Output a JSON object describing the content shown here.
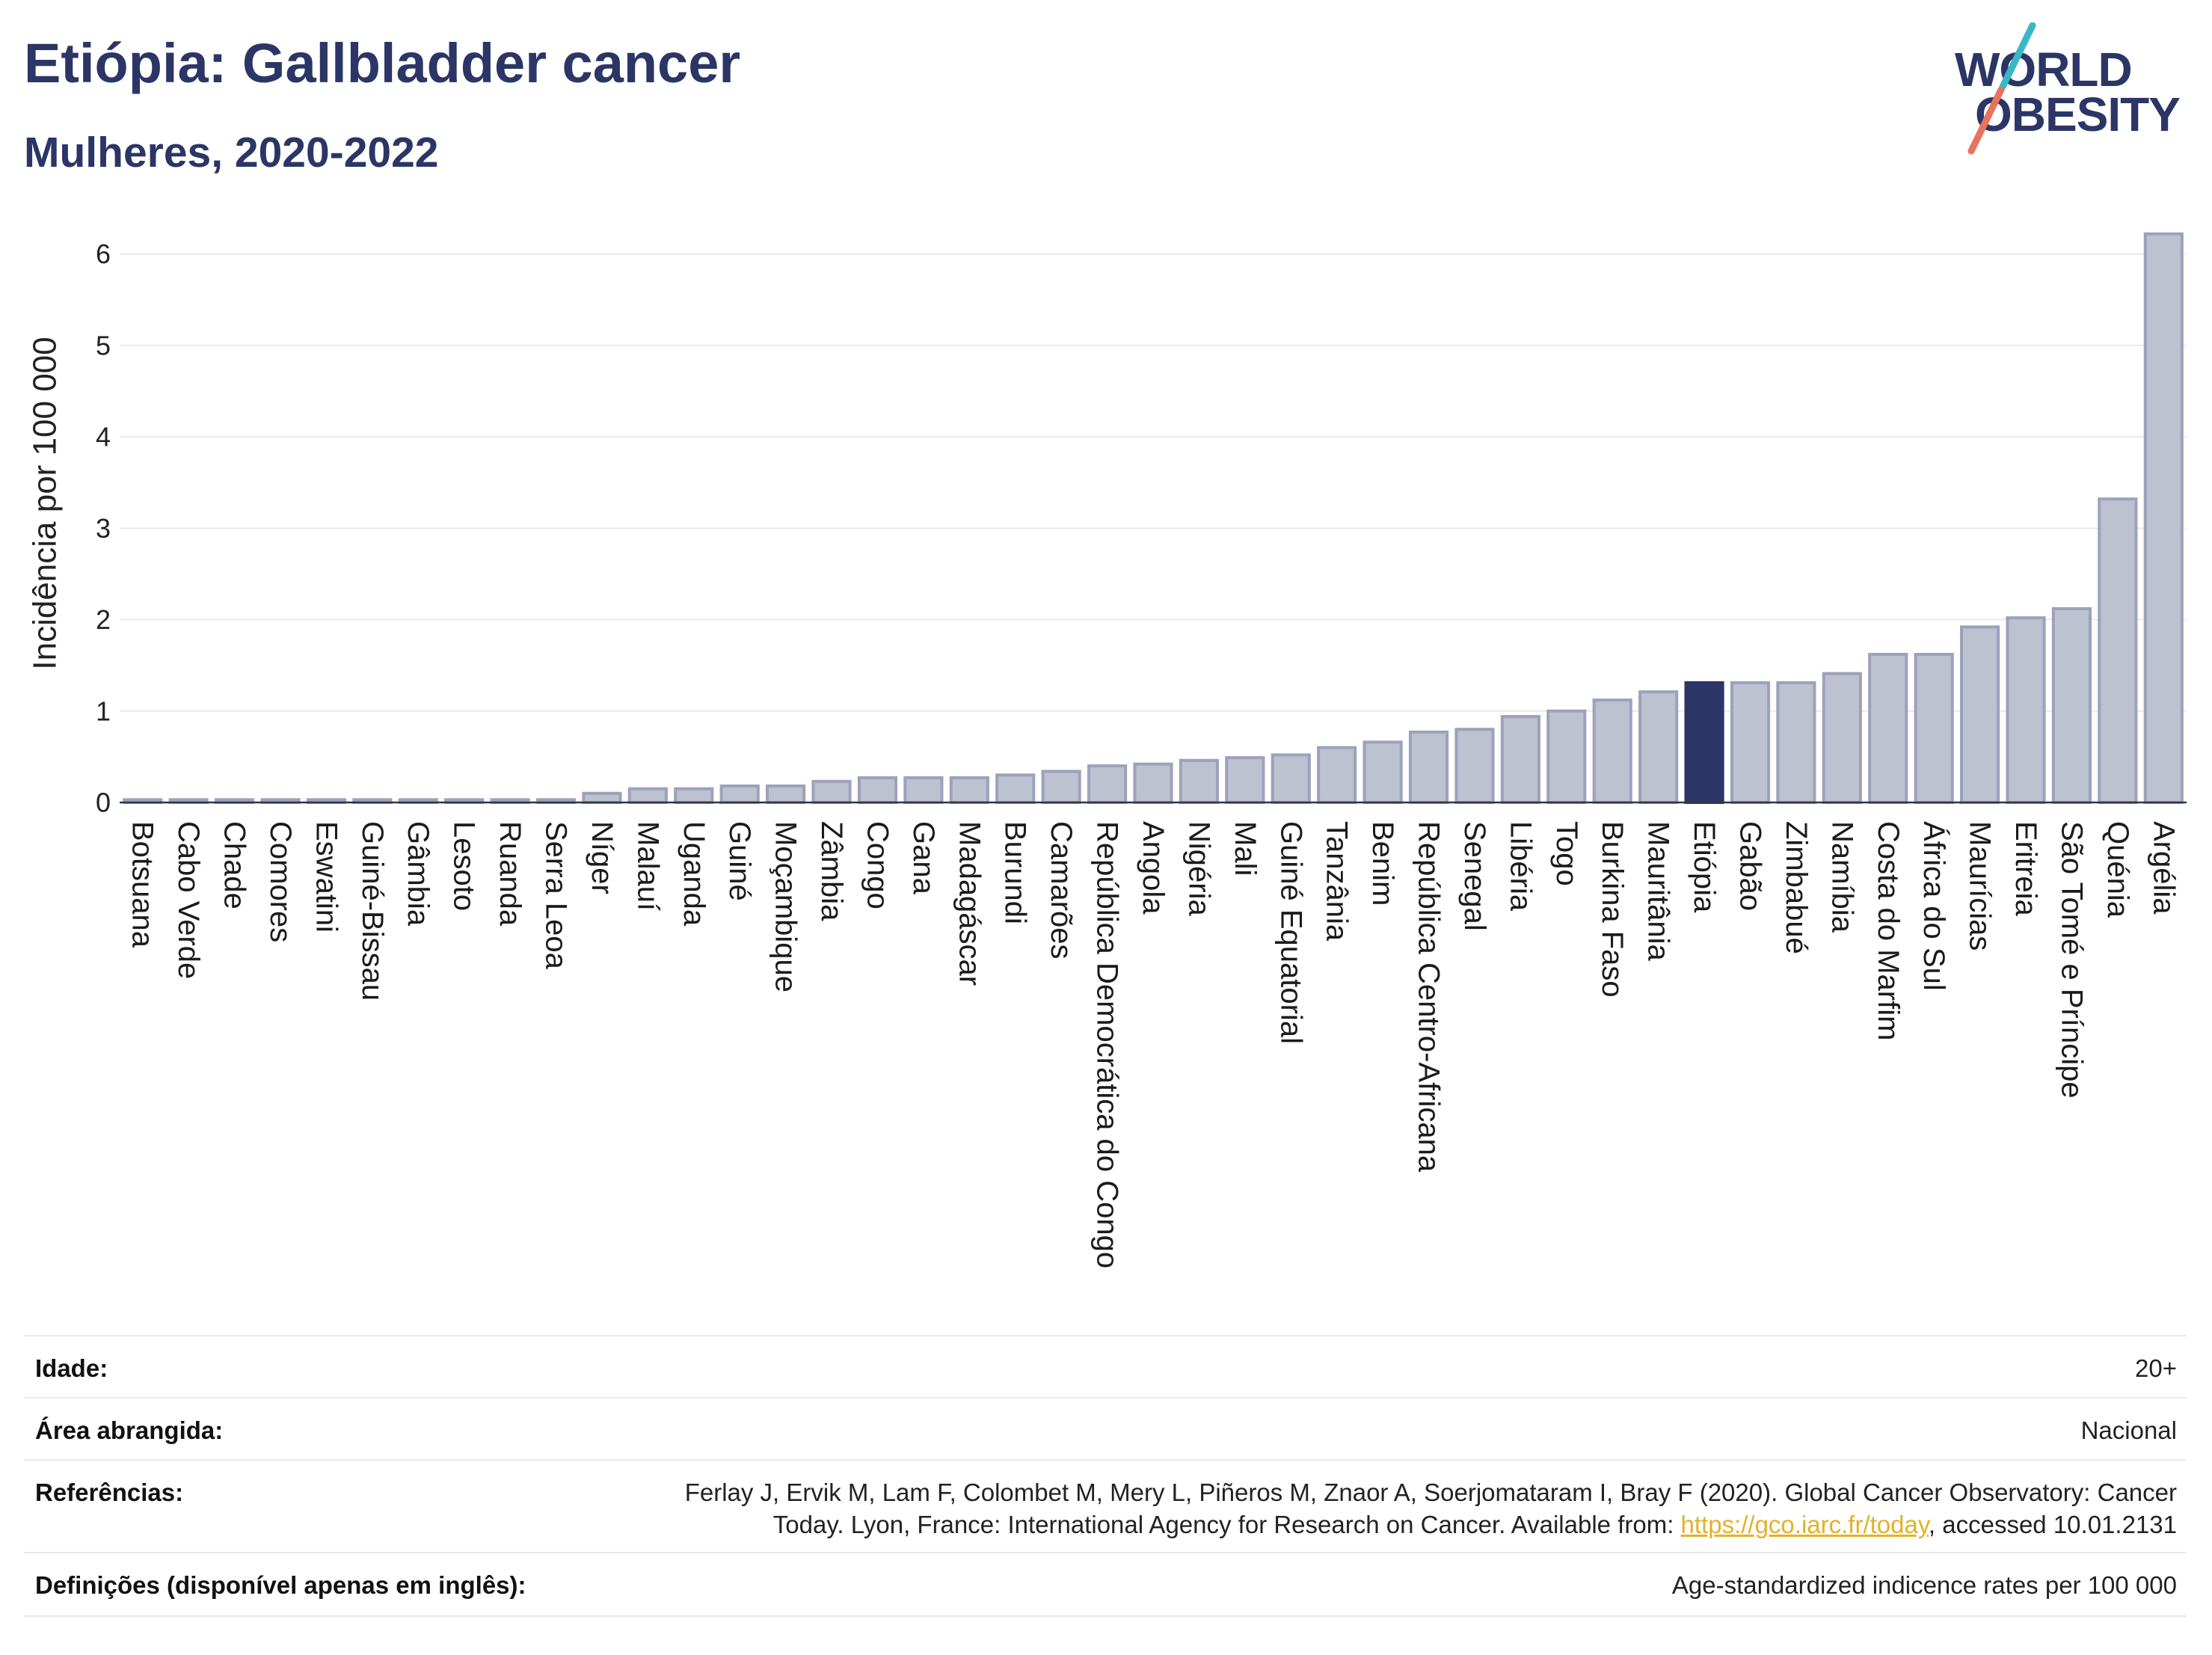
{
  "theme": {
    "primary": "#2b3566",
    "link": "#e2b227",
    "rule": "#e6e9ee"
  },
  "logo": {
    "line1": "WORLD",
    "line2": "OBESITY",
    "colors": {
      "slash_top": "#3bb6c4",
      "slash_bottom": "#e8735e"
    }
  },
  "chart_data": {
    "type": "bar",
    "title": "Etiópia: Gallbladder cancer",
    "subtitle": "Mulheres, 2020-2022",
    "xlabel": "",
    "ylabel": "Incidência por 100 000",
    "ylim": [
      0,
      6.3
    ],
    "yticks": [
      0,
      1,
      2,
      3,
      4,
      5,
      6
    ],
    "grid": true,
    "highlighted_index": 34,
    "categories": [
      "Botsuana",
      "Cabo Verde",
      "Chade",
      "Comores",
      "Eswatini",
      "Guiné-Bissau",
      "Gâmbia",
      "Lesoto",
      "Ruanda",
      "Serra Leoa",
      "Níger",
      "Malauí",
      "Uganda",
      "Guiné",
      "Moçambique",
      "Zâmbia",
      "Congo",
      "Gana",
      "Madagáscar",
      "Burundi",
      "Camarões",
      "República Democrática do Congo",
      "Angola",
      "Nigéria",
      "Mali",
      "Guiné Equatorial",
      "Tanzânia",
      "Benim",
      "República Centro-Africana",
      "Senegal",
      "Libéria",
      "Togo",
      "Burkina Faso",
      "Mauritânia",
      "Etiópia",
      "Gabão",
      "Zimbabué",
      "Namíbia",
      "Costa do Marfim",
      "África do Sul",
      "Maurícias",
      "Eritreia",
      "São Tomé e Príncipe",
      "Quénia",
      "Argélia"
    ],
    "values": [
      0.03,
      0.03,
      0.03,
      0.03,
      0.03,
      0.03,
      0.03,
      0.03,
      0.03,
      0.03,
      0.1,
      0.15,
      0.15,
      0.18,
      0.18,
      0.23,
      0.27,
      0.27,
      0.27,
      0.3,
      0.34,
      0.4,
      0.42,
      0.46,
      0.49,
      0.52,
      0.6,
      0.66,
      0.77,
      0.8,
      0.94,
      1.0,
      1.12,
      1.21,
      1.31,
      1.31,
      1.31,
      1.41,
      1.62,
      1.62,
      1.92,
      2.02,
      2.12,
      3.32,
      6.22
    ],
    "colors": {
      "bar": "#bdc1d0",
      "bar_stroke": "#9ca2ba",
      "highlight": "#2b3566",
      "grid": "#e8eaf0",
      "axis": "#30364a"
    }
  },
  "footer": {
    "age": {
      "label": "Idade:",
      "value": "20+"
    },
    "area": {
      "label": "Área abrangida:",
      "value": "Nacional"
    },
    "references": {
      "label": "Referências:",
      "line1": "Ferlay J, Ervik M, Lam F, Colombet M, Mery L, Piñeros M, Znaor A, Soerjomataram I, Bray F (2020). Global Cancer Observatory: Cancer",
      "line2_prefix": "Today. Lyon, France: International Agency for Research on Cancer. Available from: ",
      "link": "https://gco.iarc.fr/today",
      "line2_suffix": ", accessed 10.01.2131"
    },
    "definitions": {
      "label": "Definições (disponível apenas em inglês):",
      "value": "Age-standardized indicence rates per 100 000"
    }
  }
}
